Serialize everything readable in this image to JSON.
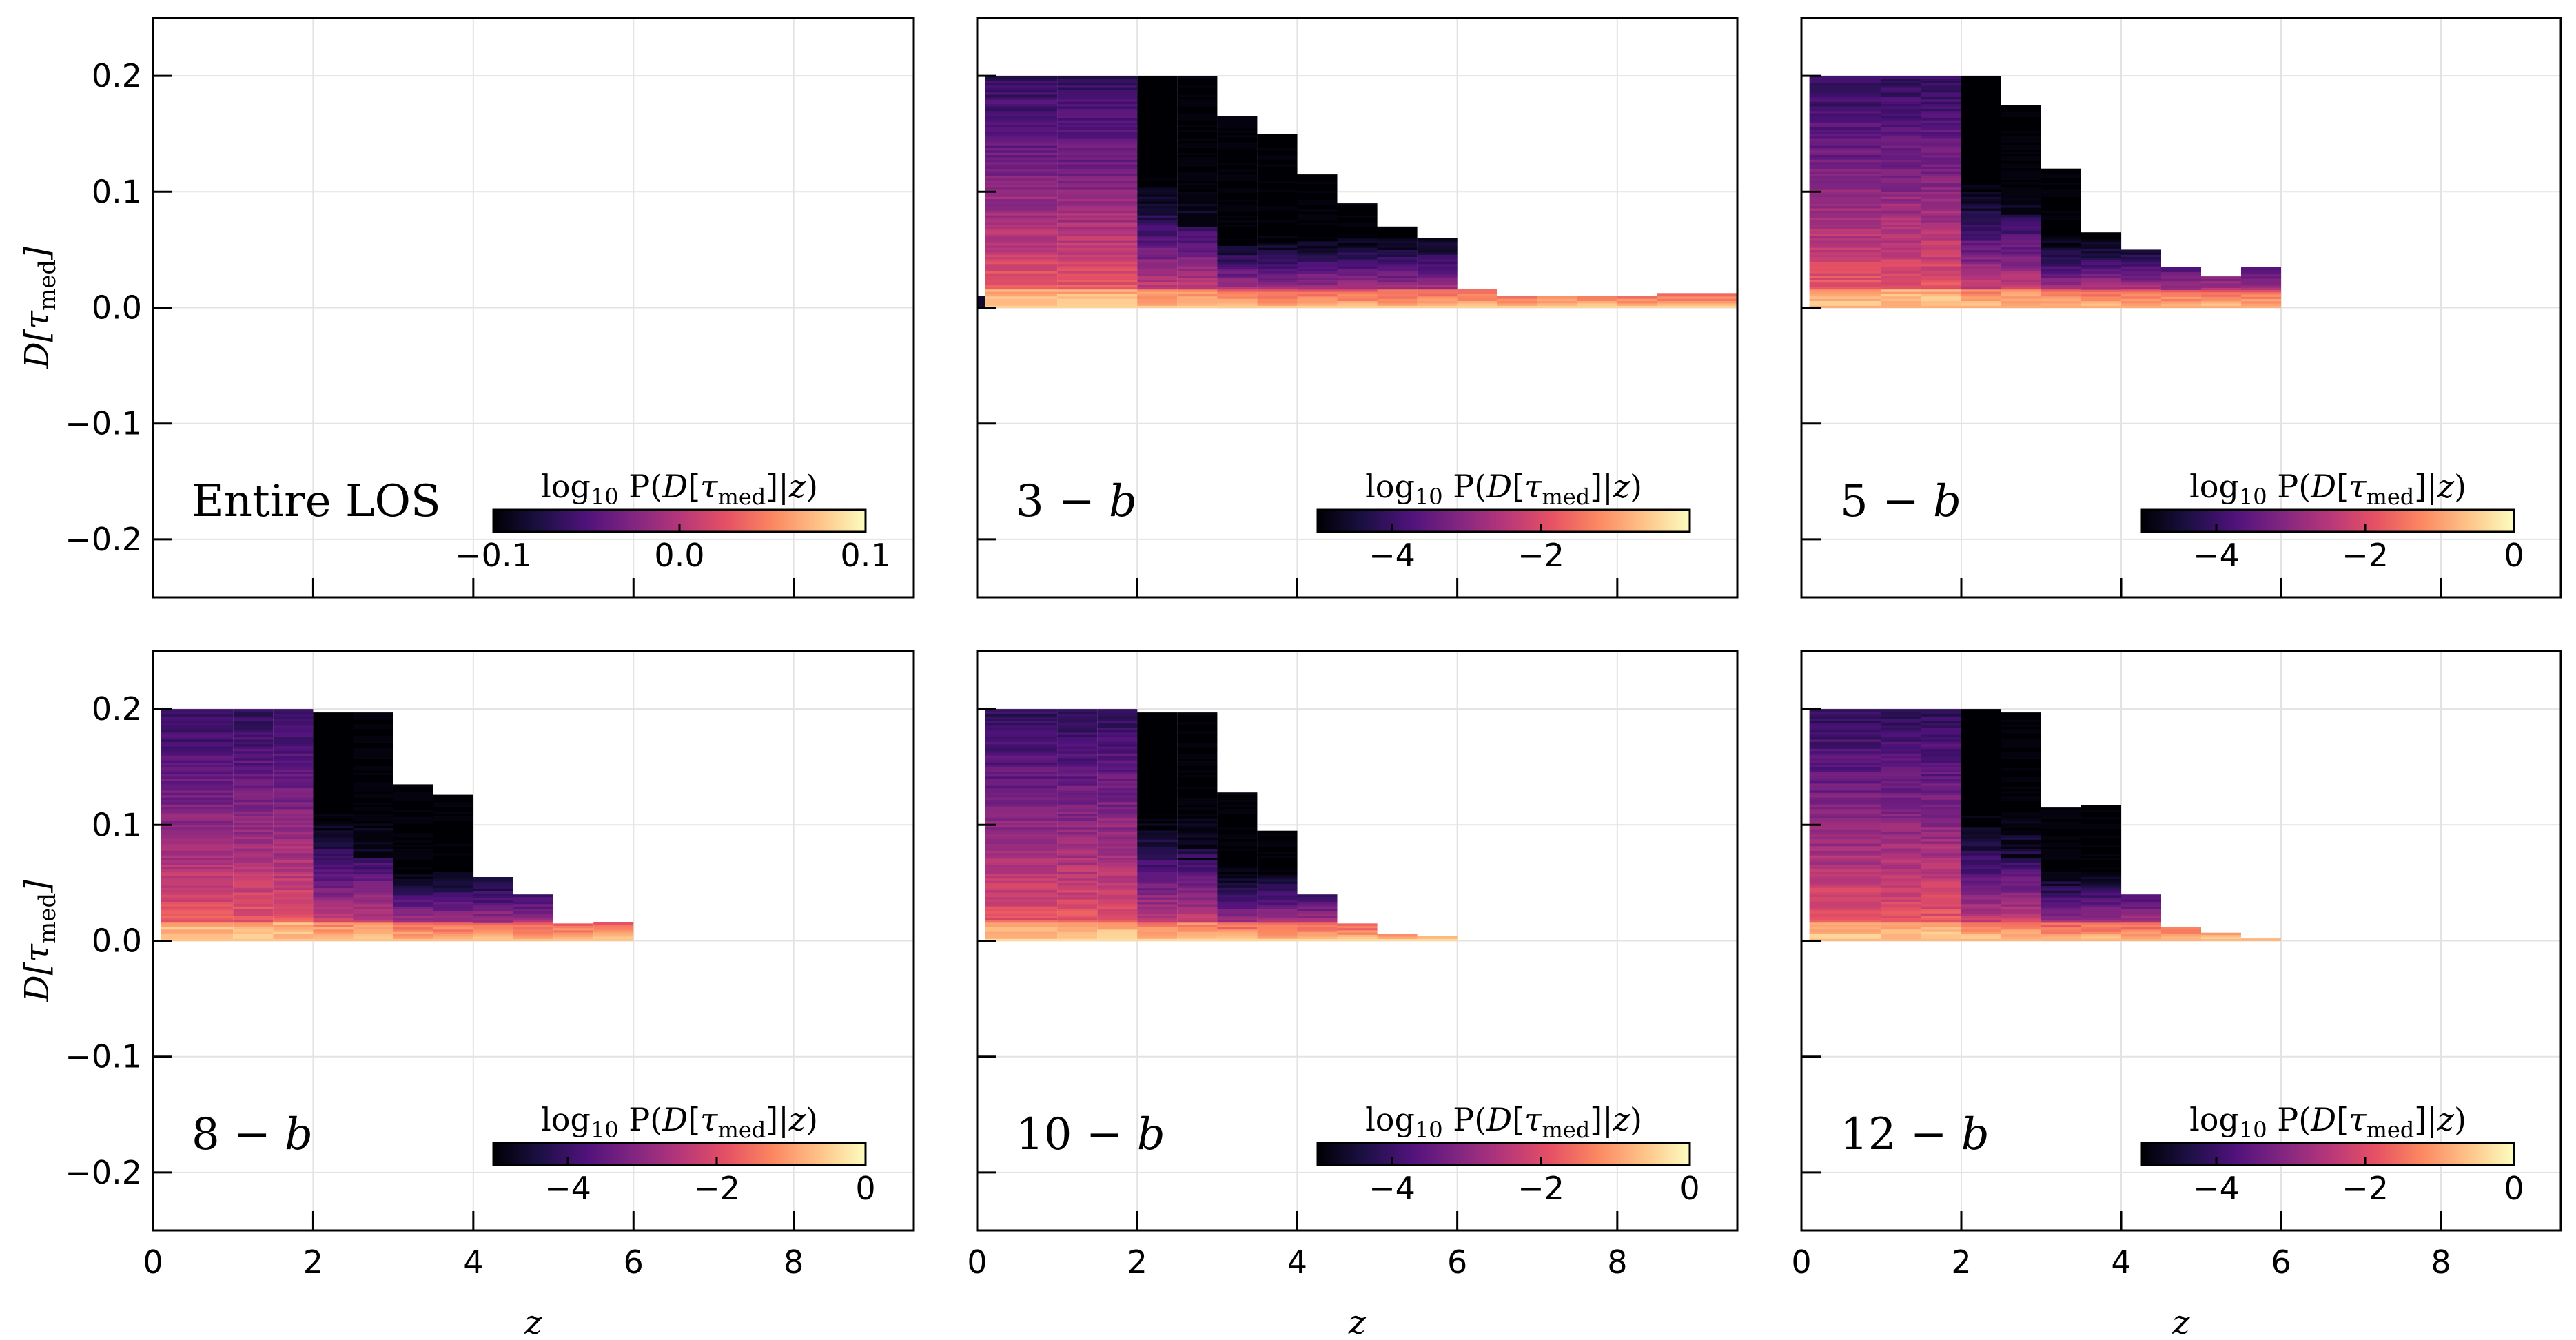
{
  "figure": {
    "ylabel": "D[τmed]",
    "xlabel": "z",
    "colorbar_title": "log10 P(D[τmed]|z)",
    "colormap": [
      "#000004",
      "#1c1044",
      "#4f127b",
      "#812581",
      "#b5367a",
      "#e55064",
      "#fb8761",
      "#fec287",
      "#fcfdbf"
    ]
  },
  "chart_data": [
    {
      "type": "heatmap",
      "panel": "Entire LOS",
      "xlabel": "",
      "ylabel": "D[τmed]",
      "xlim": [
        0,
        9.5
      ],
      "ylim": [
        -0.25,
        0.25
      ],
      "xticks": [
        0,
        2,
        4,
        6,
        8
      ],
      "yticks": [
        -0.2,
        -0.1,
        0.0,
        0.1,
        0.2
      ],
      "ytick_labels": [
        "−0.2",
        "−0.1",
        "0.0",
        "0.1",
        "0.2"
      ],
      "colorbar": {
        "range": [
          -0.1,
          0.1
        ],
        "ticks": [
          -0.1,
          0.0,
          0.1
        ],
        "tick_labels": [
          "−0.1",
          "0.0",
          "0.1"
        ]
      },
      "columns": []
    },
    {
      "type": "heatmap",
      "panel": "3 − b",
      "xlabel": "",
      "ylabel": "",
      "xlim": [
        0,
        9.5
      ],
      "ylim": [
        -0.25,
        0.25
      ],
      "xticks": [
        0,
        2,
        4,
        6,
        8
      ],
      "yticks": [
        -0.2,
        -0.1,
        0.0,
        0.1,
        0.2
      ],
      "ytick_labels": [
        "",
        "",
        "",
        "",
        ""
      ],
      "colorbar": {
        "range": [
          -5,
          0
        ],
        "ticks": [
          -4,
          -2
        ],
        "tick_labels": [
          "−4",
          "−2"
        ]
      },
      "columns": [
        {
          "z0": 0.0,
          "z1": 0.1,
          "dmax": 0.01
        },
        {
          "z0": 0.1,
          "z1": 1.0,
          "dmax": 0.2
        },
        {
          "z0": 1.0,
          "z1": 2.0,
          "dmax": 0.2
        },
        {
          "z0": 2.0,
          "z1": 2.5,
          "dmax": 0.2
        },
        {
          "z0": 2.5,
          "z1": 3.0,
          "dmax": 0.2
        },
        {
          "z0": 3.0,
          "z1": 3.5,
          "dmax": 0.165
        },
        {
          "z0": 3.5,
          "z1": 4.0,
          "dmax": 0.15
        },
        {
          "z0": 4.0,
          "z1": 4.5,
          "dmax": 0.115
        },
        {
          "z0": 4.5,
          "z1": 5.0,
          "dmax": 0.09
        },
        {
          "z0": 5.0,
          "z1": 5.5,
          "dmax": 0.07
        },
        {
          "z0": 5.5,
          "z1": 6.0,
          "dmax": 0.06
        },
        {
          "z0": 6.0,
          "z1": 6.5,
          "dmax": 0.016
        },
        {
          "z0": 6.5,
          "z1": 7.0,
          "dmax": 0.01
        },
        {
          "z0": 7.0,
          "z1": 7.5,
          "dmax": 0.01
        },
        {
          "z0": 7.5,
          "z1": 8.0,
          "dmax": 0.01
        },
        {
          "z0": 8.0,
          "z1": 8.5,
          "dmax": 0.01
        },
        {
          "z0": 8.5,
          "z1": 9.5,
          "dmax": 0.012
        }
      ]
    },
    {
      "type": "heatmap",
      "panel": "5 − b",
      "xlabel": "",
      "ylabel": "",
      "xlim": [
        0,
        9.5
      ],
      "ylim": [
        -0.25,
        0.25
      ],
      "xticks": [
        0,
        2,
        4,
        6,
        8
      ],
      "yticks": [
        -0.2,
        -0.1,
        0.0,
        0.1,
        0.2
      ],
      "ytick_labels": [
        "",
        "",
        "",
        "",
        ""
      ],
      "colorbar": {
        "range": [
          -5,
          0
        ],
        "ticks": [
          -4,
          -2,
          0
        ],
        "tick_labels": [
          "−4",
          "−2",
          "0"
        ]
      },
      "columns": [
        {
          "z0": 0.1,
          "z1": 1.0,
          "dmax": 0.2
        },
        {
          "z0": 1.0,
          "z1": 1.5,
          "dmax": 0.2
        },
        {
          "z0": 1.5,
          "z1": 2.0,
          "dmax": 0.2
        },
        {
          "z0": 2.0,
          "z1": 2.5,
          "dmax": 0.2
        },
        {
          "z0": 2.5,
          "z1": 3.0,
          "dmax": 0.175
        },
        {
          "z0": 3.0,
          "z1": 3.5,
          "dmax": 0.12
        },
        {
          "z0": 3.5,
          "z1": 4.0,
          "dmax": 0.065
        },
        {
          "z0": 4.0,
          "z1": 4.5,
          "dmax": 0.05
        },
        {
          "z0": 4.5,
          "z1": 5.0,
          "dmax": 0.035
        },
        {
          "z0": 5.0,
          "z1": 5.5,
          "dmax": 0.027
        },
        {
          "z0": 5.5,
          "z1": 6.0,
          "dmax": 0.035
        }
      ]
    },
    {
      "type": "heatmap",
      "panel": "8 − b",
      "xlabel": "z",
      "ylabel": "D[τmed]",
      "xlim": [
        0,
        9.5
      ],
      "ylim": [
        -0.25,
        0.25
      ],
      "xticks": [
        0,
        2,
        4,
        6,
        8
      ],
      "yticks": [
        -0.2,
        -0.1,
        0.0,
        0.1,
        0.2
      ],
      "ytick_labels": [
        "−0.2",
        "−0.1",
        "0.0",
        "0.1",
        "0.2"
      ],
      "colorbar": {
        "range": [
          -5,
          0
        ],
        "ticks": [
          -4,
          -2,
          0
        ],
        "tick_labels": [
          "−4",
          "−2",
          "0"
        ]
      },
      "columns": [
        {
          "z0": 0.1,
          "z1": 1.0,
          "dmax": 0.2
        },
        {
          "z0": 1.0,
          "z1": 1.5,
          "dmax": 0.2
        },
        {
          "z0": 1.5,
          "z1": 2.0,
          "dmax": 0.2
        },
        {
          "z0": 2.0,
          "z1": 2.5,
          "dmax": 0.197
        },
        {
          "z0": 2.5,
          "z1": 3.0,
          "dmax": 0.197
        },
        {
          "z0": 3.0,
          "z1": 3.5,
          "dmax": 0.135
        },
        {
          "z0": 3.5,
          "z1": 4.0,
          "dmax": 0.126
        },
        {
          "z0": 4.0,
          "z1": 4.5,
          "dmax": 0.055
        },
        {
          "z0": 4.5,
          "z1": 5.0,
          "dmax": 0.04
        },
        {
          "z0": 5.0,
          "z1": 5.5,
          "dmax": 0.015
        },
        {
          "z0": 5.5,
          "z1": 6.0,
          "dmax": 0.016
        }
      ]
    },
    {
      "type": "heatmap",
      "panel": "10 − b",
      "xlabel": "z",
      "ylabel": "",
      "xlim": [
        0,
        9.5
      ],
      "ylim": [
        -0.25,
        0.25
      ],
      "xticks": [
        0,
        2,
        4,
        6,
        8
      ],
      "yticks": [
        -0.2,
        -0.1,
        0.0,
        0.1,
        0.2
      ],
      "ytick_labels": [
        "",
        "",
        "",
        "",
        ""
      ],
      "colorbar": {
        "range": [
          -5,
          0
        ],
        "ticks": [
          -4,
          -2,
          0
        ],
        "tick_labels": [
          "−4",
          "−2",
          "0"
        ]
      },
      "columns": [
        {
          "z0": 0.1,
          "z1": 1.0,
          "dmax": 0.2
        },
        {
          "z0": 1.0,
          "z1": 1.5,
          "dmax": 0.2
        },
        {
          "z0": 1.5,
          "z1": 2.0,
          "dmax": 0.2
        },
        {
          "z0": 2.0,
          "z1": 2.5,
          "dmax": 0.197
        },
        {
          "z0": 2.5,
          "z1": 3.0,
          "dmax": 0.197
        },
        {
          "z0": 3.0,
          "z1": 3.5,
          "dmax": 0.128
        },
        {
          "z0": 3.5,
          "z1": 4.0,
          "dmax": 0.095
        },
        {
          "z0": 4.0,
          "z1": 4.5,
          "dmax": 0.04
        },
        {
          "z0": 4.5,
          "z1": 5.0,
          "dmax": 0.015
        },
        {
          "z0": 5.0,
          "z1": 5.5,
          "dmax": 0.006
        },
        {
          "z0": 5.5,
          "z1": 6.0,
          "dmax": 0.004
        }
      ]
    },
    {
      "type": "heatmap",
      "panel": "12 − b",
      "xlabel": "z",
      "ylabel": "",
      "xlim": [
        0,
        9.5
      ],
      "ylim": [
        -0.25,
        0.25
      ],
      "xticks": [
        0,
        2,
        4,
        6,
        8
      ],
      "yticks": [
        -0.2,
        -0.1,
        0.0,
        0.1,
        0.2
      ],
      "ytick_labels": [
        "",
        "",
        "",
        "",
        ""
      ],
      "colorbar": {
        "range": [
          -5,
          0
        ],
        "ticks": [
          -4,
          -2,
          0
        ],
        "tick_labels": [
          "−4",
          "−2",
          "0"
        ]
      },
      "columns": [
        {
          "z0": 0.1,
          "z1": 1.0,
          "dmax": 0.2
        },
        {
          "z0": 1.0,
          "z1": 1.5,
          "dmax": 0.2
        },
        {
          "z0": 1.5,
          "z1": 2.0,
          "dmax": 0.2
        },
        {
          "z0": 2.0,
          "z1": 2.5,
          "dmax": 0.2
        },
        {
          "z0": 2.5,
          "z1": 3.0,
          "dmax": 0.197
        },
        {
          "z0": 3.0,
          "z1": 3.5,
          "dmax": 0.115
        },
        {
          "z0": 3.5,
          "z1": 4.0,
          "dmax": 0.117
        },
        {
          "z0": 4.0,
          "z1": 4.5,
          "dmax": 0.04
        },
        {
          "z0": 4.5,
          "z1": 5.0,
          "dmax": 0.012
        },
        {
          "z0": 5.0,
          "z1": 5.5,
          "dmax": 0.007
        },
        {
          "z0": 5.5,
          "z1": 6.0,
          "dmax": 0.002
        }
      ]
    }
  ]
}
